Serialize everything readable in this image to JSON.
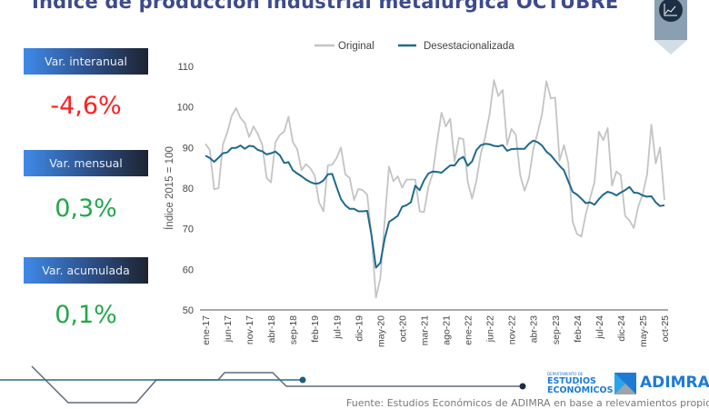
{
  "header": {
    "title": "Índice de producción industrial metalúrgica OCTUBRE",
    "icon": "line-chart-icon"
  },
  "kpis": [
    {
      "label": "Var. interanual",
      "value": "-4,6%",
      "color": "#ff1f1f"
    },
    {
      "label": "Var. mensual",
      "value": "0,3%",
      "color": "#22a84a"
    },
    {
      "label": "Var. acumulada",
      "value": "0,1%",
      "color": "#22a84a"
    }
  ],
  "chart_data": {
    "type": "line",
    "title": "",
    "xlabel": "",
    "ylabel": "Índice 2015 = 100",
    "ylim": [
      50,
      110
    ],
    "yticks": [
      50,
      60,
      70,
      80,
      90,
      100,
      110
    ],
    "x_range": [
      "ene-17",
      "oct-25"
    ],
    "xtick_labels": [
      "ene-17",
      "jun-17",
      "nov-17",
      "abr-18",
      "sep-18",
      "feb-19",
      "jul-19",
      "dic-19",
      "may-20",
      "oct-20",
      "mar-21",
      "ago-21",
      "ene-22",
      "jun-22",
      "nov-22",
      "abr-23",
      "sep-23",
      "feb-24",
      "jul-24",
      "dic-24",
      "may-25",
      "oct-25"
    ],
    "xtick_every_months": 5,
    "grid": false,
    "legend": "top",
    "series": [
      {
        "name": "Original",
        "color": "#c4c4c4",
        "values": [
          90.9,
          89.4,
          79.7,
          80.0,
          90.7,
          93.7,
          97.8,
          99.7,
          97.3,
          96.1,
          92.6,
          95.2,
          93.3,
          90.7,
          82.5,
          81.4,
          91.3,
          93.1,
          93.9,
          97.6,
          91.3,
          89.6,
          84.4,
          85.9,
          84.9,
          83.1,
          76.5,
          74.3,
          85.6,
          85.8,
          87.4,
          90.0,
          83.4,
          82.5,
          77.1,
          79.8,
          79.5,
          78.4,
          68.0,
          53.0,
          57.8,
          72.0,
          85.3,
          81.7,
          82.9,
          80.1,
          82.1,
          82.1,
          82.1,
          74.3,
          74.1,
          80.3,
          83.6,
          91.5,
          98.6,
          95.2,
          97.1,
          86.6,
          92.4,
          92.0,
          81.6,
          77.4,
          81.9,
          88.5,
          92.6,
          98.2,
          106.6,
          102.7,
          104.2,
          90.7,
          94.6,
          93.1,
          83.2,
          79.4,
          82.5,
          89.6,
          93.7,
          98.2,
          106.3,
          102.1,
          102.3,
          86.8,
          90.6,
          86.2,
          71.7,
          68.7,
          68.1,
          73.5,
          77.6,
          81.4,
          93.9,
          91.8,
          94.8,
          80.6,
          84.1,
          83.2,
          73.2,
          72.0,
          70.2,
          75.4,
          78.4,
          83.2,
          95.6,
          86.1,
          90.0,
          77.1
        ]
      },
      {
        "name": "Desestacionalizada",
        "color": "#1f6a8c",
        "values": [
          88.0,
          87.4,
          86.5,
          87.5,
          88.6,
          88.8,
          89.9,
          89.9,
          90.5,
          89.7,
          90.4,
          90.3,
          89.4,
          89.1,
          88.3,
          88.6,
          89.0,
          88.1,
          86.2,
          86.4,
          84.4,
          83.6,
          82.9,
          82.1,
          81.5,
          81.1,
          81.2,
          81.9,
          83.4,
          83.5,
          80.3,
          77.3,
          75.8,
          74.9,
          74.9,
          74.3,
          74.3,
          74.4,
          68.3,
          60.4,
          61.6,
          67.5,
          71.7,
          72.4,
          73.2,
          75.4,
          75.8,
          76.5,
          80.6,
          79.5,
          81.9,
          83.6,
          84.1,
          84.0,
          83.8,
          84.7,
          85.6,
          85.6,
          87.1,
          87.7,
          85.5,
          86.6,
          89.4,
          90.6,
          90.9,
          90.8,
          90.4,
          90.3,
          90.6,
          89.2,
          89.6,
          89.7,
          89.7,
          89.7,
          90.9,
          91.7,
          91.3,
          90.5,
          89.0,
          88.1,
          86.8,
          85.5,
          84.4,
          81.7,
          79.1,
          78.4,
          77.4,
          76.3,
          76.5,
          75.9,
          77.3,
          78.4,
          79.1,
          78.8,
          78.2,
          78.9,
          79.5,
          80.3,
          78.9,
          78.8,
          78.2,
          77.9,
          78.0,
          76.5,
          75.6,
          75.8
        ]
      }
    ]
  },
  "footer": {
    "source": "Fuente: Estudios Económicos de ADIMRA en base a relevamientos propios",
    "logo_ee_small": "DEPARTAMENTO DE",
    "logo_ee_line1": "ESTUDIOS",
    "logo_ee_line2": "ECONÓMICOS",
    "logo_adimra": "ADIMRA"
  }
}
